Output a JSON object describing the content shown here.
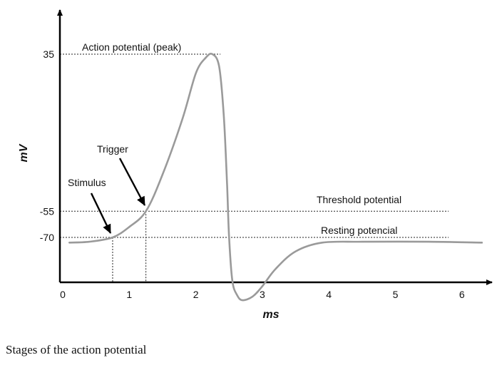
{
  "chart_data": {
    "type": "line",
    "xlabel": "ms",
    "ylabel": "mV",
    "x_ticks": [
      "0",
      "1",
      "2",
      "3",
      "4",
      "5",
      "6"
    ],
    "y_ticks": [
      "35",
      "-55",
      "-70"
    ],
    "y_tick_values": [
      35,
      -55,
      -70
    ],
    "series": [
      {
        "x": [
          0.1,
          0.4,
          0.75,
          1.0,
          1.25,
          1.5,
          1.8,
          2.0,
          2.15,
          2.25,
          2.35,
          2.42,
          2.47,
          2.5,
          2.55,
          2.62,
          2.7,
          2.85,
          3.0,
          3.2,
          3.5,
          3.9,
          4.5,
          5.5,
          6.3
        ],
        "values": [
          -73,
          -72.5,
          -70,
          -64,
          -55,
          -34,
          -2,
          24,
          33,
          35,
          28,
          0,
          -40,
          -70,
          -95,
          -103,
          -106,
          -104,
          -98,
          -88,
          -78,
          -73,
          -72.5,
          -72.5,
          -73
        ]
      }
    ],
    "reference_lines": [
      {
        "y": 35,
        "x_end": 2.37,
        "label": "Action potential (peak)"
      },
      {
        "y": -55,
        "x_end": 5.8,
        "label": "Threshold potential"
      },
      {
        "y": -70,
        "x_end": 5.8,
        "label": "Resting potencial"
      }
    ],
    "markers": [
      {
        "label": "Stimulus",
        "x": 0.75,
        "y": -70
      },
      {
        "label": "Trigger",
        "x": 1.25,
        "y": -55
      }
    ],
    "colors": {
      "curve": "#9a9a9a",
      "axis": "#000000"
    }
  },
  "caption": "Stages of the action potential"
}
